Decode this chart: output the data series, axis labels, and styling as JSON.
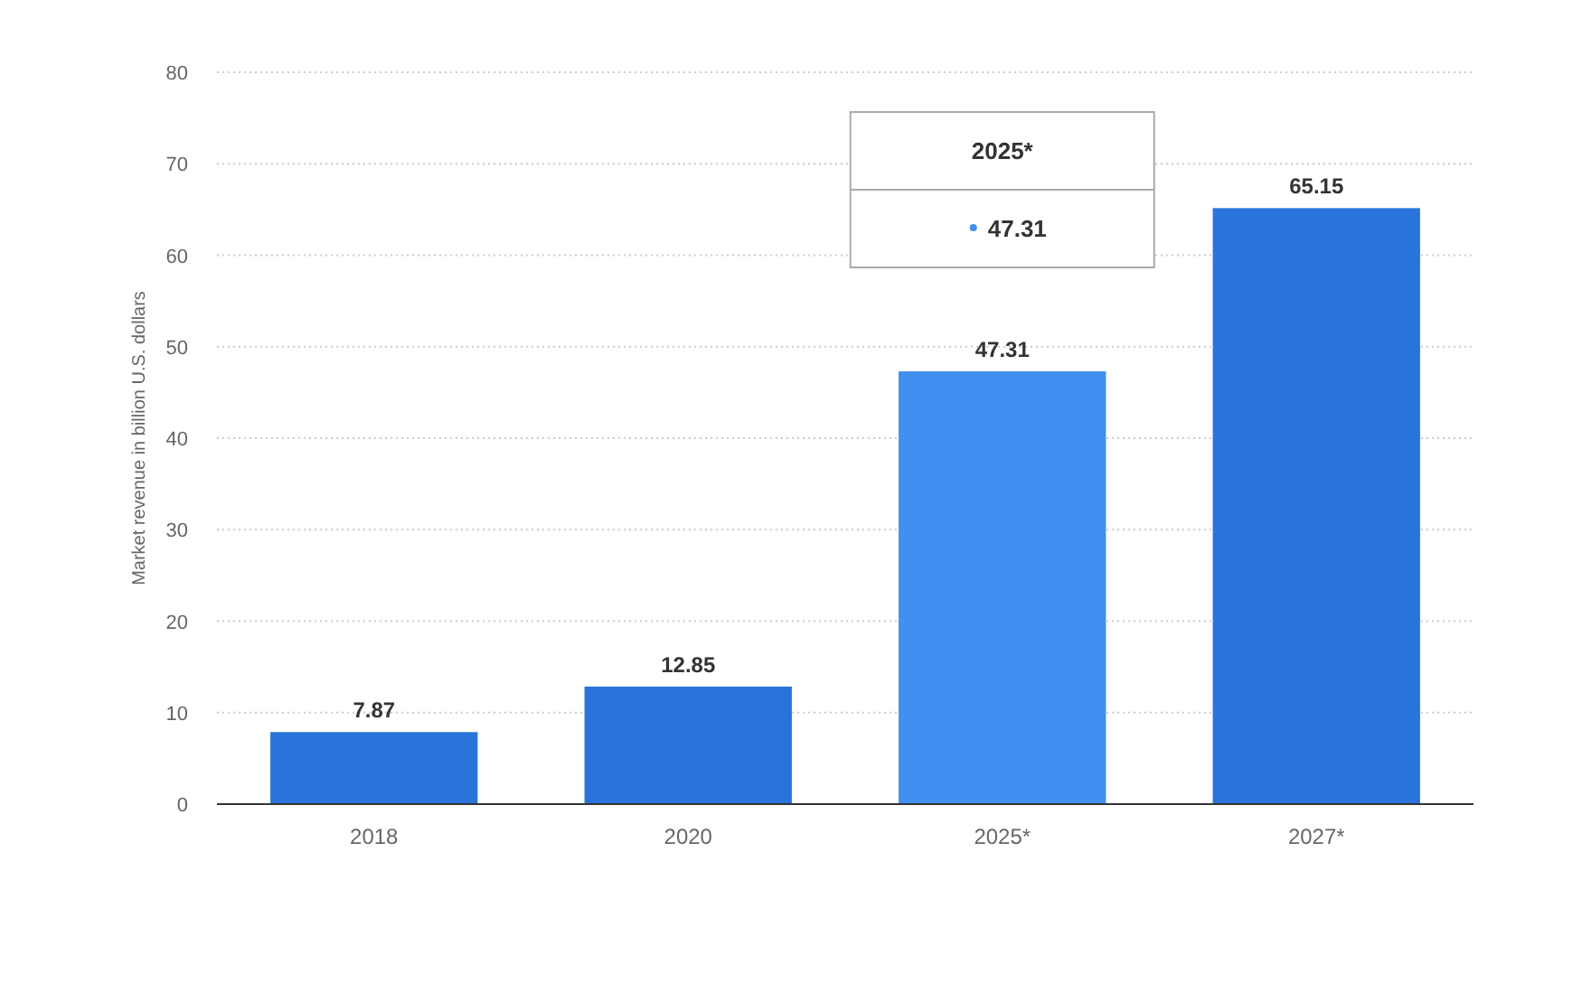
{
  "chart_data": {
    "type": "bar",
    "ylabel": "Market revenue in billion U.S. dollars",
    "categories": [
      "2018",
      "2020",
      "2025*",
      "2027*"
    ],
    "values": [
      7.87,
      12.85,
      47.31,
      65.15
    ],
    "colors": [
      "#2874db",
      "#2874db",
      "#418ff0",
      "#2874db"
    ],
    "ylim": [
      0,
      80
    ],
    "yticks": [
      0,
      10,
      20,
      30,
      40,
      50,
      60,
      70,
      80
    ],
    "grid": "y",
    "data_labels": true,
    "annotations": [
      "2025*",
      "47.31"
    ]
  }
}
